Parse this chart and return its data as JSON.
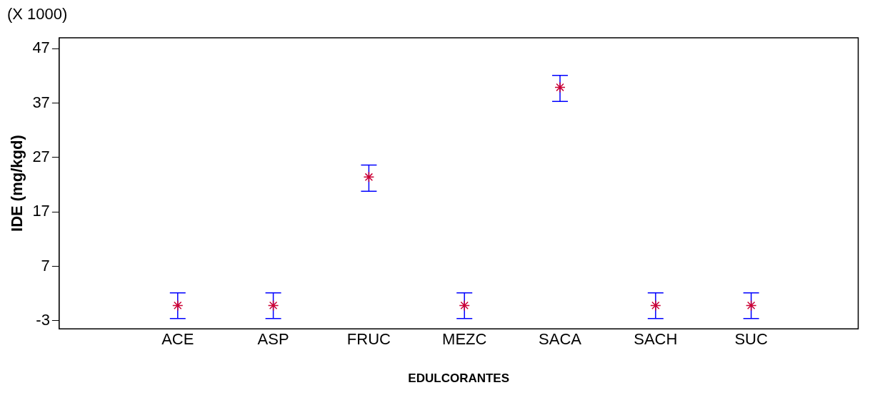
{
  "chart_data": {
    "type": "scatter",
    "xlabel": "EDULCORANTES",
    "ylabel": "IDE (mg/kgd)",
    "annotations": [
      "(X 1000)"
    ],
    "categories": [
      "ACE",
      "ASP",
      "FRUC",
      "MEZC",
      "SACA",
      "SACH",
      "SUC"
    ],
    "series": [
      {
        "color": "#cc0033",
        "values": [
          -0.2,
          -0.2,
          23.4,
          -0.2,
          39.9,
          -0.2,
          -0.2
        ],
        "errors": [
          [
            -2.6,
            2.1
          ],
          [
            -2.6,
            2.1
          ],
          [
            20.8,
            25.6
          ],
          [
            -2.6,
            2.1
          ],
          [
            37.3,
            42.1
          ],
          [
            -2.6,
            2.1
          ],
          [
            -2.6,
            2.1
          ]
        ]
      }
    ],
    "ylim": [
      -4.5,
      49
    ],
    "yticks": [
      -3,
      7,
      17,
      27,
      37,
      47
    ],
    "marker": "cross",
    "grid": false,
    "legend": false
  }
}
